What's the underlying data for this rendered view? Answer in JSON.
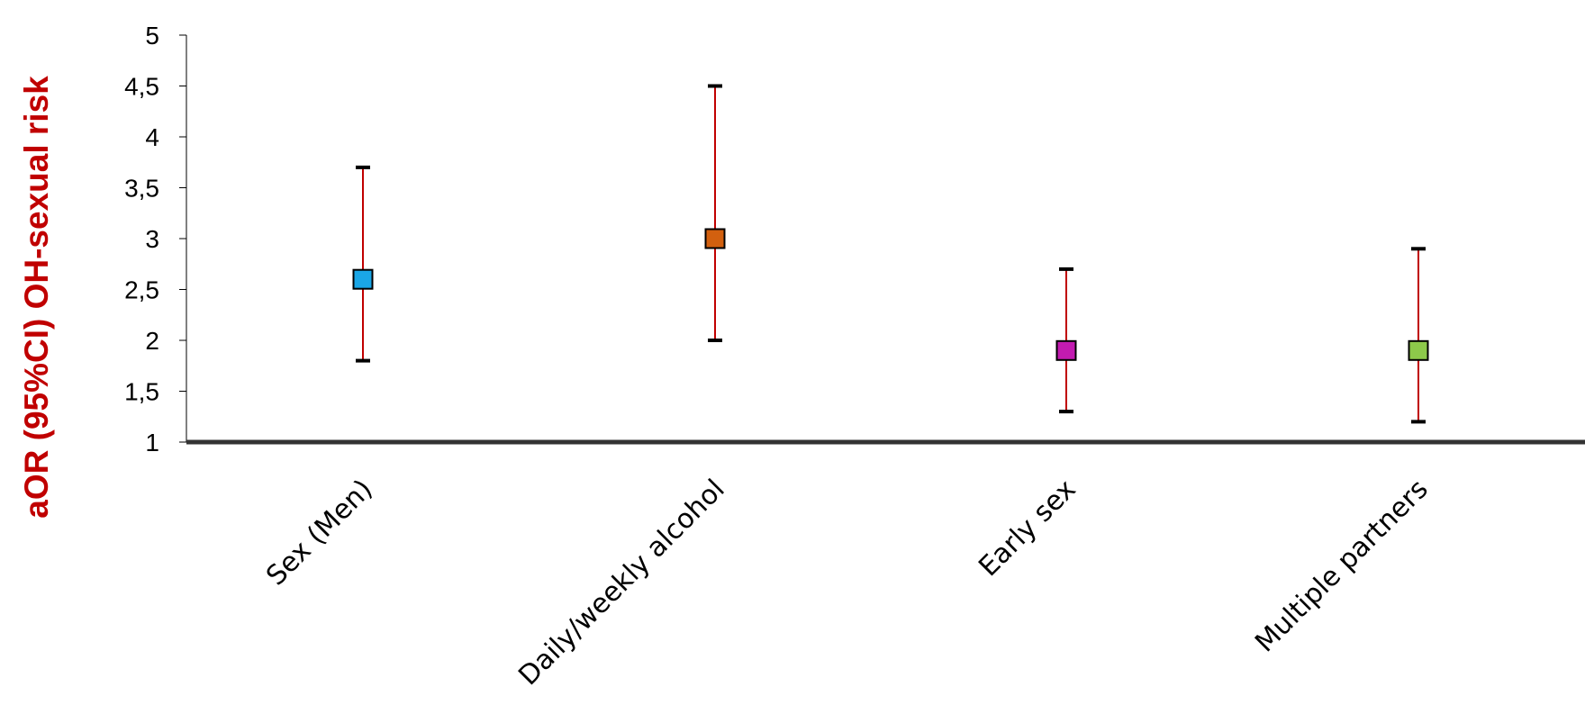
{
  "chart_data": {
    "type": "scatter",
    "title": "",
    "xlabel": "",
    "ylabel": "aOR (95%CI)  OH-sexual risk",
    "ylim": [
      1,
      5
    ],
    "yticks": [
      "1",
      "1,5",
      "2",
      "2,5",
      "3",
      "3,5",
      "4",
      "4,5",
      "5"
    ],
    "grid": false,
    "categories": [
      "Sex (Men)",
      "Daily/weekly alcohol",
      "Early sex",
      "Multiple partners"
    ],
    "points": [
      {
        "category": "Sex (Men)",
        "value": 2.6,
        "lower": 1.8,
        "upper": 3.7,
        "color": "#1aa6e6"
      },
      {
        "category": "Daily/weekly alcohol",
        "value": 3.0,
        "lower": 2.0,
        "upper": 4.5,
        "color": "#d2600f"
      },
      {
        "category": "Early sex",
        "value": 1.9,
        "lower": 1.3,
        "upper": 2.7,
        "color": "#c21bb0"
      },
      {
        "category": "Multiple partners",
        "value": 1.9,
        "lower": 1.2,
        "upper": 2.9,
        "color": "#8dc94a"
      }
    ],
    "colors": {
      "ylabel": "#c00000",
      "error_bar": "#c00000",
      "axis": "#333333"
    }
  }
}
